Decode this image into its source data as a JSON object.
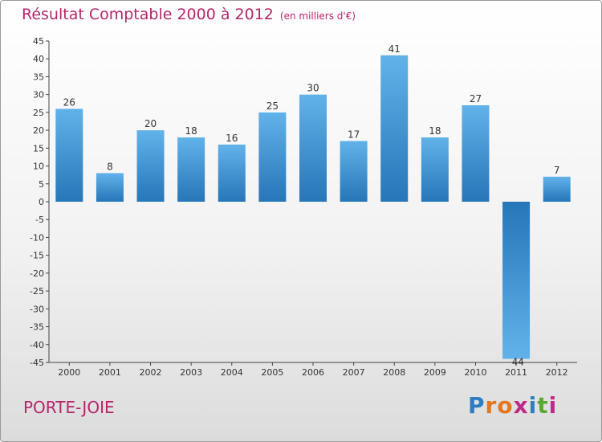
{
  "title": "Résultat Comptable 2000 à 2012",
  "subtitle": "(en milliers d'€)",
  "commune": "PORTE-JOIE",
  "logo": {
    "letters": [
      "P",
      "r",
      "o",
      "x",
      "i",
      "t",
      "i"
    ],
    "colors": [
      "#2e7dc1",
      "#e4761e",
      "#e4761e",
      "#c0298a",
      "#2e7dc1",
      "#5aa832",
      "#c0298a"
    ]
  },
  "colors": {
    "title": "#b5256a",
    "bar": "#3a8fd6",
    "bar_light": "#62b2ea",
    "bar_dark": "#2676b9"
  },
  "chart_data": {
    "type": "bar",
    "title": "Résultat Comptable 2000 à 2012",
    "xlabel": "",
    "ylabel": "",
    "categories": [
      "2000",
      "2001",
      "2002",
      "2003",
      "2004",
      "2005",
      "2006",
      "2007",
      "2008",
      "2009",
      "2010",
      "2011",
      "2012"
    ],
    "values": [
      26,
      8,
      20,
      18,
      16,
      25,
      30,
      17,
      41,
      18,
      27,
      -44,
      7
    ],
    "ylim": [
      -45,
      45
    ],
    "yticks": [
      -45,
      -40,
      -35,
      -30,
      -25,
      -20,
      -15,
      -10,
      -5,
      0,
      5,
      10,
      15,
      20,
      25,
      30,
      35,
      40,
      45
    ],
    "grid": false
  }
}
